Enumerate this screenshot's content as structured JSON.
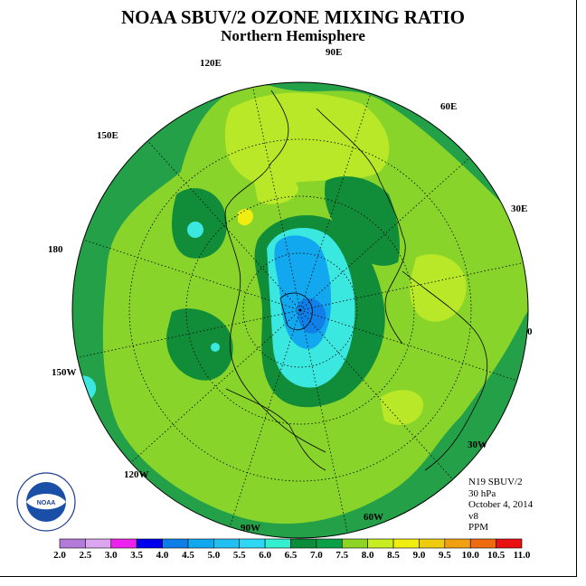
{
  "title": "NOAA SBUV/2 OZONE MIXING RATIO",
  "subtitle": "Northern Hemisphere",
  "longitude_labels": [
    "90E",
    "60E",
    "30E",
    "0",
    "30W",
    "60W",
    "90W",
    "120W",
    "150W",
    "180",
    "150E",
    "120E"
  ],
  "info": {
    "instrument": "N19 SBUV/2",
    "level": "30 hPa",
    "date": "October 4, 2014",
    "version": "v8",
    "units": "PPM"
  },
  "colorbar": {
    "ticks": [
      "2.0",
      "2.5",
      "3.0",
      "3.5",
      "4.0",
      "4.5",
      "5.0",
      "5.5",
      "6.0",
      "6.5",
      "7.0",
      "7.5",
      "8.0",
      "8.5",
      "9.0",
      "9.5",
      "10.0",
      "10.5",
      "11.0"
    ],
    "colors": [
      "#b27ad9",
      "#dca6ee",
      "#ee22ee",
      "#0000ee",
      "#0e7ee8",
      "#12a8f0",
      "#22c0f0",
      "#2ed8f4",
      "#34f0d0",
      "#0a8c3a",
      "#0aa048",
      "#8ed424",
      "#c8ee22",
      "#f0ee10",
      "#f0cc10",
      "#f0a010",
      "#f06a10",
      "#e81010",
      "#8c5c40"
    ]
  },
  "map_colors": {
    "outer": "#23a048",
    "dark": "#118d3a",
    "mid": "#88d42a",
    "light": "#b8e828",
    "yellow": "#f0ee10",
    "cyan": "#3ae8e0",
    "blue": "#12a8f0",
    "deepblue": "#1080e8"
  },
  "emblem": "noaa-logo"
}
